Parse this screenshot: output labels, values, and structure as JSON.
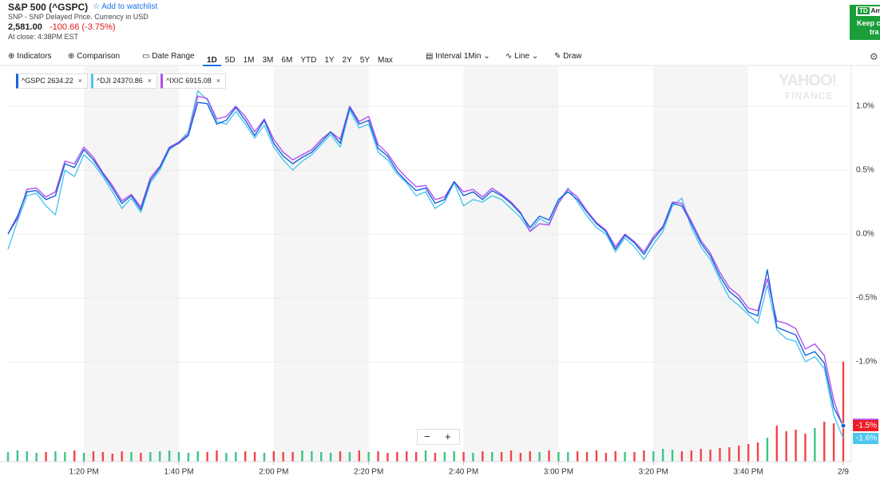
{
  "header": {
    "title": "S&P 500 (^GSPC)",
    "watchlist": "Add to watchlist",
    "subtitle": "SNP - SNP Delayed Price. Currency in USD",
    "price": "2,581.00",
    "change": "-100.66 (-3.75%)",
    "close_time": "At close: 4:38PM EST"
  },
  "toolbar": {
    "indicators": "Indicators",
    "comparison": "Comparison",
    "date_range": "Date Range",
    "ranges": [
      "1D",
      "5D",
      "1M",
      "3M",
      "6M",
      "YTD",
      "1Y",
      "2Y",
      "5Y",
      "Max"
    ],
    "interval_label": "Interval",
    "interval": "1Min",
    "line": "Line",
    "draw": "Draw"
  },
  "ad": {
    "brand": "Am",
    "line1": "Keep c",
    "line2": "tra"
  },
  "watermark": [
    "YAHOO!",
    "FINANCE"
  ],
  "zoom": [
    "−",
    "+"
  ],
  "chart_data": {
    "type": "line",
    "categories": [
      null,
      null,
      null,
      null,
      null,
      null,
      null,
      null,
      "1:20 PM",
      null,
      null,
      null,
      null,
      null,
      null,
      null,
      null,
      null,
      "1:40 PM",
      null,
      null,
      null,
      null,
      null,
      null,
      null,
      null,
      null,
      "2:00 PM",
      null,
      null,
      null,
      null,
      null,
      null,
      null,
      null,
      null,
      "2:20 PM",
      null,
      null,
      null,
      null,
      null,
      null,
      null,
      null,
      null,
      "2:40 PM",
      null,
      null,
      null,
      null,
      null,
      null,
      null,
      null,
      null,
      "3:00 PM",
      null,
      null,
      null,
      null,
      null,
      null,
      null,
      null,
      null,
      "3:20 PM",
      null,
      null,
      null,
      null,
      null,
      null,
      null,
      null,
      null,
      "3:40 PM",
      null,
      null,
      null,
      null,
      null,
      null,
      null,
      null,
      null,
      "2/9"
    ],
    "ylim": [
      -1.7,
      1.3
    ],
    "yticks": [
      {
        "value": 1,
        "label": "1.0%"
      },
      {
        "value": 0.5,
        "label": "0.5%"
      },
      {
        "value": 0,
        "label": "0.0%"
      },
      {
        "value": -0.5,
        "label": "-0.5%"
      },
      {
        "value": -1,
        "label": "-1.0%"
      }
    ],
    "grid": true,
    "series": [
      {
        "name": "^GSPC",
        "price": 2634.22,
        "color": "#1565d8",
        "end_label": "-1.5%",
        "end_label_color": "#ee1c25",
        "values": [
          0,
          0.14,
          0.33,
          0.34,
          0.27,
          0.3,
          0.55,
          0.52,
          0.66,
          0.58,
          0.47,
          0.36,
          0.24,
          0.3,
          0.19,
          0.42,
          0.52,
          0.67,
          0.71,
          0.77,
          1.03,
          1.02,
          0.86,
          0.89,
          0.99,
          0.89,
          0.77,
          0.89,
          0.71,
          0.61,
          0.55,
          0.6,
          0.64,
          0.72,
          0.8,
          0.71,
          0.99,
          0.86,
          0.89,
          0.67,
          0.61,
          0.49,
          0.41,
          0.34,
          0.36,
          0.24,
          0.27,
          0.41,
          0.3,
          0.33,
          0.27,
          0.34,
          0.3,
          0.24,
          0.16,
          0.05,
          0.14,
          0.11,
          0.27,
          0.33,
          0.27,
          0.17,
          0.08,
          0.02,
          -0.12,
          -0.01,
          -0.07,
          -0.16,
          -0.04,
          0.05,
          0.24,
          0.22,
          0.08,
          -0.07,
          -0.17,
          -0.33,
          -0.45,
          -0.51,
          -0.61,
          -0.64,
          -0.28,
          -0.73,
          -0.76,
          -0.79,
          -0.95,
          -0.92,
          -1.01,
          -1.36,
          -1.5
        ]
      },
      {
        "name": "^DJI",
        "price": 24370.86,
        "color": "#4cc6f0",
        "end_label": "-1.6%",
        "end_label_color": "#4cc6f0",
        "values": [
          -0.12,
          0.1,
          0.3,
          0.32,
          0.22,
          0.15,
          0.5,
          0.45,
          0.62,
          0.55,
          0.45,
          0.33,
          0.2,
          0.28,
          0.17,
          0.4,
          0.5,
          0.66,
          0.72,
          0.8,
          1.12,
          1.05,
          0.88,
          0.86,
          0.96,
          0.86,
          0.75,
          0.85,
          0.68,
          0.58,
          0.5,
          0.57,
          0.62,
          0.7,
          0.78,
          0.68,
          0.97,
          0.83,
          0.86,
          0.64,
          0.58,
          0.47,
          0.4,
          0.3,
          0.33,
          0.2,
          0.25,
          0.4,
          0.22,
          0.27,
          0.25,
          0.3,
          0.27,
          0.2,
          0.13,
          0.02,
          0.12,
          0.08,
          0.25,
          0.36,
          0.25,
          0.14,
          0.05,
          0.0,
          -0.14,
          -0.03,
          -0.1,
          -0.2,
          -0.08,
          0.02,
          0.22,
          0.28,
          0.05,
          -0.1,
          -0.2,
          -0.36,
          -0.5,
          -0.56,
          -0.63,
          -0.7,
          -0.4,
          -0.75,
          -0.82,
          -0.84,
          -1.0,
          -0.96,
          -1.05,
          -1.42,
          -1.6
        ]
      },
      {
        "name": "^IXIC",
        "price": 6915.08,
        "color": "#b44ff2",
        "values": [
          0.0,
          0.12,
          0.35,
          0.36,
          0.29,
          0.33,
          0.57,
          0.55,
          0.68,
          0.6,
          0.48,
          0.38,
          0.26,
          0.31,
          0.21,
          0.44,
          0.53,
          0.68,
          0.72,
          0.78,
          1.08,
          1.06,
          0.9,
          0.92,
          1.0,
          0.92,
          0.8,
          0.9,
          0.74,
          0.64,
          0.58,
          0.62,
          0.66,
          0.74,
          0.8,
          0.74,
          1.0,
          0.88,
          0.92,
          0.7,
          0.63,
          0.52,
          0.44,
          0.37,
          0.38,
          0.27,
          0.29,
          0.41,
          0.33,
          0.35,
          0.29,
          0.36,
          0.31,
          0.25,
          0.17,
          0.02,
          0.08,
          0.07,
          0.24,
          0.35,
          0.29,
          0.18,
          0.09,
          0.03,
          -0.1,
          0.0,
          -0.06,
          -0.14,
          -0.02,
          0.06,
          0.25,
          0.24,
          0.1,
          -0.05,
          -0.15,
          -0.3,
          -0.42,
          -0.48,
          -0.58,
          -0.6,
          -0.35,
          -0.68,
          -0.7,
          -0.74,
          -0.9,
          -0.86,
          -0.95,
          -1.3,
          -1.52
        ]
      }
    ],
    "volume": [
      12,
      14,
      13,
      11,
      12,
      13,
      12,
      14,
      11,
      13,
      12,
      10,
      13,
      12,
      11,
      12,
      13,
      14,
      12,
      11,
      13,
      12,
      14,
      11,
      12,
      13,
      12,
      11,
      13,
      12,
      12,
      14,
      13,
      12,
      11,
      13,
      12,
      14,
      12,
      13,
      11,
      12,
      13,
      12,
      14,
      11,
      12,
      13,
      12,
      11,
      13,
      12,
      12,
      14,
      11,
      13,
      12,
      14,
      12,
      12,
      13,
      12,
      14,
      11,
      13,
      12,
      12,
      14,
      13,
      16,
      15,
      13,
      14,
      16,
      15,
      17,
      18,
      20,
      22,
      24,
      30,
      45,
      38,
      40,
      35,
      42,
      50,
      48,
      125
    ],
    "volume_colors": {
      "up": "#3cc48a",
      "down": "#f0454a"
    }
  }
}
